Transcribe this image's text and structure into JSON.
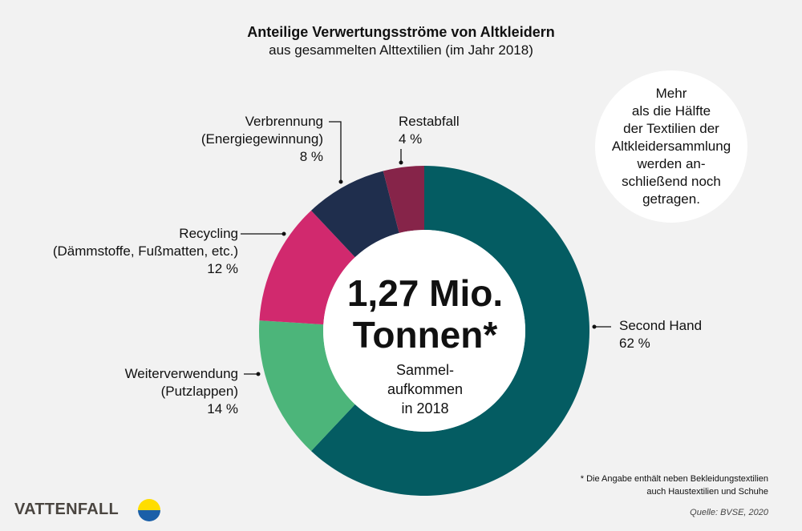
{
  "title": "Anteilige Verwertungsströme von Altkleidern",
  "subtitle": "aus gesammelten Alttextilien (im Jahr 2018)",
  "chart_data": {
    "type": "pie",
    "donut": true,
    "categories": [
      "Second Hand",
      "Weiterverwendung",
      "Recycling",
      "Verbrennung",
      "Restabfall"
    ],
    "values": [
      62,
      14,
      12,
      8,
      4
    ],
    "unit": "%",
    "colors": [
      "#045c62",
      "#4cb57a",
      "#d1296e",
      "#1f2e4d",
      "#862449"
    ],
    "labels": [
      {
        "name": "Second Hand",
        "detail": "",
        "value": "62 %"
      },
      {
        "name": "Weiterverwendung",
        "detail": "(Putzlappen)",
        "value": "14 %"
      },
      {
        "name": "Recycling",
        "detail": "(Dämmstoffe, Fußmatten, etc.)",
        "value": "12 %"
      },
      {
        "name": "Verbrennung",
        "detail": "(Energiegewinnung)",
        "value": "8 %"
      },
      {
        "name": "Restabfall",
        "detail": "",
        "value": "4 %"
      }
    ],
    "center": {
      "line1": "1,27 Mio.",
      "line2": "Tonnen*",
      "sub1": "Sammel-",
      "sub2": "aufkommen",
      "sub3": "in 2018"
    }
  },
  "bubble": [
    "Mehr",
    "als die Hälfte",
    "der Textilien der",
    "Altkleidersammlung",
    "werden an-",
    "schließend noch",
    "getragen."
  ],
  "footnote": [
    "* Die Angabe enthält neben Bekleidungstextilien",
    "auch Haustextilien und Schuhe"
  ],
  "source": "Quelle: BVSE, 2020",
  "logo": "VATTENFALL"
}
